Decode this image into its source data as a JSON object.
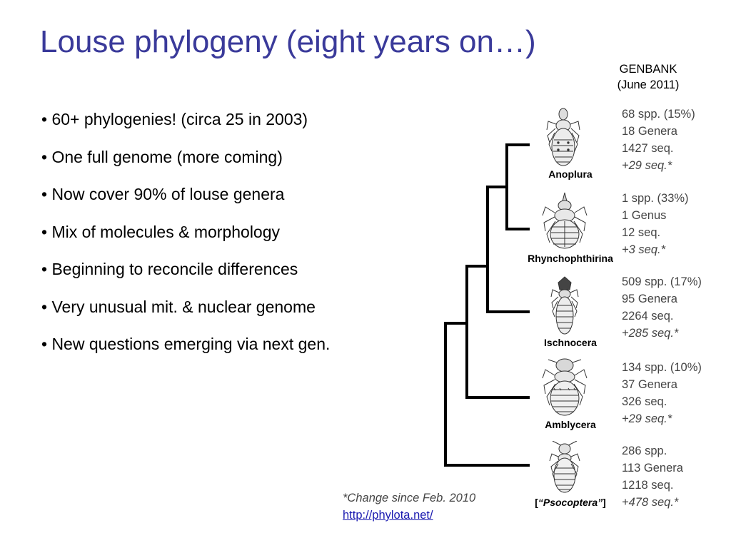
{
  "slide": {
    "title": "Louse phylogeny (eight years on…)"
  },
  "bullets": [
    "• 60+ phylogenies! (circa 25 in 2003)",
    "• One full genome (more coming)",
    "• Now cover 90% of louse genera",
    "• Mix of molecules & morphology",
    "• Beginning to reconcile differences",
    "• Very unusual mit. & nuclear genome",
    "• New questions emerging via next gen."
  ],
  "genbank": {
    "line1": "GENBANK",
    "line2": "(June 2011)"
  },
  "taxa": [
    {
      "name": "Anoplura",
      "species": "68 spp. (15%)",
      "genera": "18 Genera",
      "sequences": "1427 seq.",
      "change": "+29 seq.*",
      "illustration": "sucking-louse-drawing"
    },
    {
      "name": "Rhynchophthirina",
      "species": "1 spp. (33%)",
      "genera": "1 Genus",
      "sequences": "12 seq.",
      "change": "+3 seq.*",
      "illustration": "elephant-louse-drawing"
    },
    {
      "name": "Ischnocera",
      "species": "509 spp. (17%)",
      "genera": "95 Genera",
      "sequences": "2264 seq.",
      "change": "+285 seq.*",
      "illustration": "chewing-louse-drawing"
    },
    {
      "name": "Amblycera",
      "species": "134 spp. (10%)",
      "genera": "37 Genera",
      "sequences": "326 seq.",
      "change": "+29 seq.*",
      "illustration": "amblyceran-louse-drawing"
    },
    {
      "name": "Psocoptera",
      "bracket_open": "[",
      "quote_open": "“",
      "quote_close": "”",
      "bracket_close": "]",
      "species": "286 spp.",
      "genera": "113 Genera",
      "sequences": "1218 seq.",
      "change": "+478 seq.*",
      "illustration": "booklouse-drawing"
    }
  ],
  "footnote": {
    "note": "*Change since Feb. 2010",
    "link": "http://phylota.net/"
  }
}
